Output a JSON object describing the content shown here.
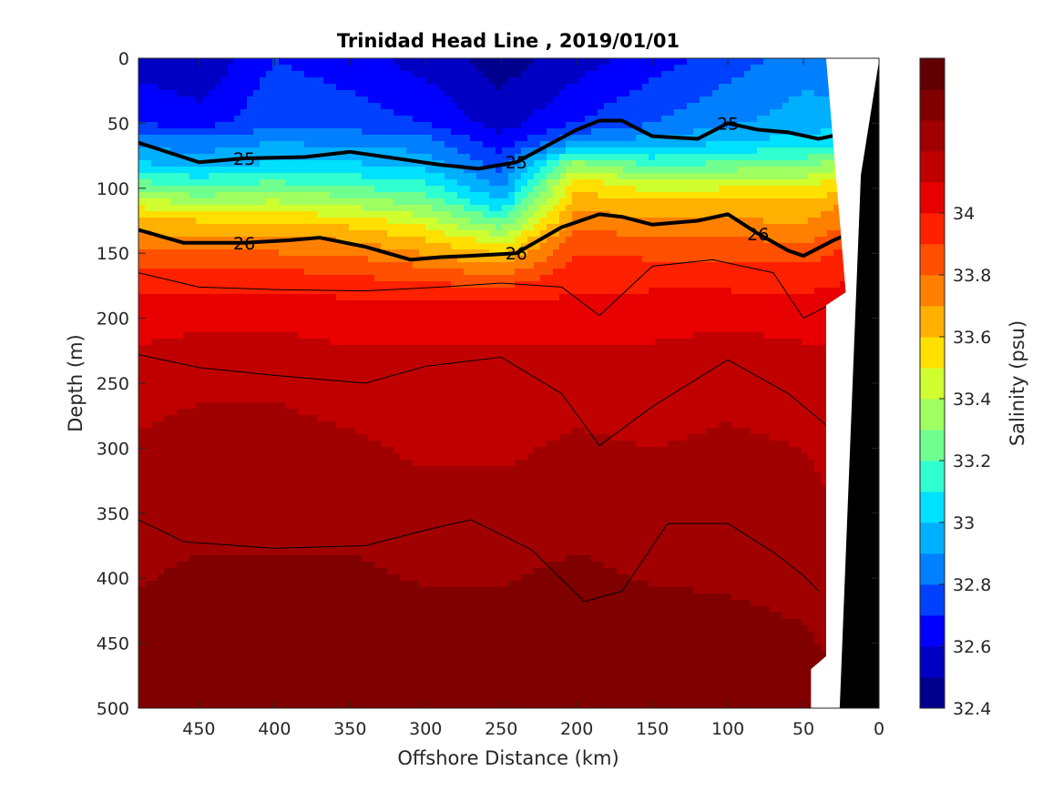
{
  "chart_data": {
    "type": "heatmap",
    "title": "Trinidad Head Line , 2019/01/01",
    "xlabel": "Offshore Distance (km)",
    "ylabel": "Depth (m)",
    "colorbar_label": "Salinity (psu)",
    "xlim": [
      490,
      0
    ],
    "x_reversed": true,
    "ylim": [
      500,
      0
    ],
    "y_reversed": true,
    "x_ticks": [
      450,
      400,
      350,
      300,
      250,
      200,
      150,
      100,
      50,
      0
    ],
    "y_ticks": [
      0,
      50,
      100,
      150,
      200,
      250,
      300,
      350,
      400,
      450,
      500
    ],
    "colorbar": {
      "min": 32.4,
      "max": 34.5,
      "ticks": [
        32.4,
        32.6,
        32.8,
        33,
        33.2,
        33.4,
        33.6,
        33.8,
        34
      ],
      "levels": [
        32.4,
        32.5,
        32.6,
        32.7,
        32.8,
        32.9,
        33.0,
        33.1,
        33.2,
        33.3,
        33.4,
        33.5,
        33.6,
        33.7,
        33.8,
        33.9,
        34.0,
        34.1,
        34.2,
        34.3,
        34.4,
        34.5
      ],
      "colors": [
        "#00008f",
        "#0000c4",
        "#0000ff",
        "#0040ff",
        "#0080ff",
        "#00b0ff",
        "#00e0ff",
        "#30ffcf",
        "#70ff8f",
        "#a0ff60",
        "#d0ff30",
        "#ffe000",
        "#ffb000",
        "#ff8000",
        "#ff5000",
        "#ff2000",
        "#e80000",
        "#c00000",
        "#a00000",
        "#800000",
        "#600000"
      ]
    },
    "salinity_profiles": {
      "depth_m": [
        0,
        50,
        65,
        80,
        95,
        110,
        125,
        140,
        155,
        170,
        190,
        230,
        300,
        380,
        460,
        500
      ],
      "stations": [
        {
          "x": 490,
          "salinity": [
            32.55,
            32.7,
            32.85,
            33.0,
            33.2,
            33.45,
            33.62,
            33.75,
            33.85,
            33.95,
            34.03,
            34.12,
            34.22,
            34.28,
            34.34,
            34.36
          ]
        },
        {
          "x": 450,
          "salinity": [
            32.5,
            32.65,
            32.85,
            32.95,
            33.15,
            33.35,
            33.6,
            33.72,
            33.85,
            33.95,
            34.05,
            34.15,
            34.25,
            34.3,
            34.36,
            34.38
          ]
        },
        {
          "x": 400,
          "salinity": [
            32.7,
            32.78,
            32.9,
            33.0,
            33.2,
            33.4,
            33.58,
            33.72,
            33.85,
            33.95,
            34.05,
            34.15,
            34.25,
            34.3,
            34.35,
            34.38
          ]
        },
        {
          "x": 350,
          "salinity": [
            32.65,
            32.75,
            32.88,
            33.0,
            33.15,
            33.35,
            33.55,
            33.7,
            33.82,
            33.92,
            34.03,
            34.12,
            34.22,
            34.3,
            34.35,
            34.38
          ]
        },
        {
          "x": 300,
          "salinity": [
            32.55,
            32.7,
            32.85,
            32.95,
            33.1,
            33.25,
            33.45,
            33.6,
            33.75,
            33.88,
            34.02,
            34.12,
            34.18,
            34.28,
            34.34,
            34.36
          ]
        },
        {
          "x": 250,
          "salinity": [
            32.45,
            32.55,
            32.65,
            32.75,
            32.85,
            33.0,
            33.2,
            33.45,
            33.65,
            33.85,
            34.02,
            34.12,
            34.18,
            34.28,
            34.34,
            34.38
          ]
        },
        {
          "x": 200,
          "salinity": [
            32.55,
            32.7,
            32.9,
            33.3,
            33.55,
            33.65,
            33.75,
            33.85,
            33.92,
            33.97,
            34.03,
            34.12,
            34.22,
            34.3,
            34.36,
            34.4
          ]
        },
        {
          "x": 150,
          "salinity": [
            32.65,
            32.8,
            32.95,
            33.15,
            33.4,
            33.6,
            33.72,
            33.82,
            33.9,
            33.96,
            34.05,
            34.12,
            34.2,
            34.28,
            34.34,
            34.36
          ]
        },
        {
          "x": 100,
          "salinity": [
            32.75,
            32.88,
            33.0,
            33.2,
            33.45,
            33.6,
            33.72,
            33.82,
            33.9,
            33.96,
            34.05,
            34.15,
            34.22,
            34.28,
            34.33,
            34.35
          ]
        },
        {
          "x": 50,
          "salinity": [
            32.85,
            32.95,
            33.05,
            33.25,
            33.45,
            33.6,
            33.68,
            33.78,
            33.88,
            33.95,
            34.05,
            34.12,
            34.2,
            34.26,
            34.32,
            34.34
          ]
        },
        {
          "x": 20,
          "salinity": [
            32.8,
            32.95,
            33.1,
            33.35,
            33.55,
            33.7,
            33.8,
            33.88,
            33.95,
            34.0,
            34.05,
            34.1,
            34.15,
            34.22,
            34.28,
            34.3
          ]
        }
      ]
    },
    "density_contours": [
      {
        "label": "25",
        "bold": true,
        "x": [
          490,
          450,
          420,
          380,
          350,
          320,
          290,
          265,
          240,
          200,
          185,
          170,
          150,
          120,
          100,
          80,
          60,
          40,
          20
        ],
        "y": [
          65,
          80,
          77,
          76,
          72,
          77,
          82,
          85,
          80,
          55,
          48,
          48,
          60,
          62,
          50,
          55,
          57,
          62,
          57
        ]
      },
      {
        "label": "26",
        "bold": true,
        "x": [
          490,
          460,
          420,
          390,
          370,
          340,
          310,
          290,
          270,
          240,
          210,
          185,
          170,
          150,
          120,
          100,
          80,
          60,
          50,
          30,
          20
        ],
        "y": [
          132,
          142,
          142,
          140,
          138,
          145,
          155,
          153,
          152,
          150,
          130,
          120,
          122,
          128,
          125,
          120,
          135,
          148,
          152,
          140,
          135
        ]
      },
      {
        "label": "",
        "bold": false,
        "x": [
          490,
          450,
          400,
          340,
          300,
          250,
          210,
          185,
          150,
          100,
          60,
          30
        ],
        "y": [
          228,
          238,
          244,
          250,
          237,
          230,
          258,
          298,
          268,
          232,
          258,
          287
        ]
      },
      {
        "label": "",
        "bold": false,
        "x": [
          490,
          460,
          400,
          340,
          300,
          270,
          230,
          195,
          170,
          140,
          100,
          70,
          50,
          40
        ],
        "y": [
          355,
          372,
          377,
          375,
          363,
          355,
          378,
          418,
          410,
          358,
          358,
          380,
          398,
          410
        ]
      },
      {
        "label": "",
        "bold": false,
        "x": [
          490,
          450,
          400,
          340,
          290,
          250,
          210,
          185,
          150,
          110,
          70,
          50,
          30,
          20
        ],
        "y": [
          165,
          176,
          178,
          179,
          176,
          173,
          176,
          198,
          160,
          155,
          165,
          200,
          188,
          178
        ]
      }
    ],
    "bathymetry": {
      "note_shape": "land",
      "x": [
        20,
        0,
        0,
        10,
        25
      ],
      "y": [
        500,
        0,
        500,
        130,
        500
      ]
    }
  }
}
